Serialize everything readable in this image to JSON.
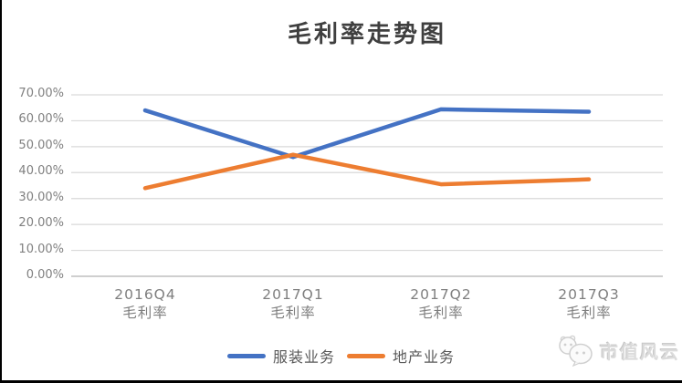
{
  "watermark": {
    "text": "市值风云",
    "icon": "panda-chat-logo-icon"
  },
  "chart_data": {
    "type": "line",
    "title": "毛利率走势图",
    "categories": [
      [
        "2016Q4",
        "毛利率"
      ],
      [
        "2017Q1",
        "毛利率"
      ],
      [
        "2017Q2",
        "毛利率"
      ],
      [
        "2017Q3",
        "毛利率"
      ]
    ],
    "series": [
      {
        "name": "服装业务",
        "color": "#4472C4",
        "values": [
          64.0,
          46.0,
          64.4,
          63.5
        ]
      },
      {
        "name": "地产业务",
        "color": "#ED7D31",
        "values": [
          34.0,
          46.9,
          35.5,
          37.4
        ]
      }
    ],
    "y_ticks": [
      "0.00%",
      "10.00%",
      "20.00%",
      "30.00%",
      "40.00%",
      "50.00%",
      "60.00%",
      "70.00%"
    ],
    "ylim": [
      0,
      70
    ],
    "grid": true,
    "legend_position": "bottom",
    "colors": {
      "gridline": "#D9D9D9",
      "axis_line": "#BFBFBF",
      "tick_label": "#808080",
      "title": "#3F3F3F",
      "legend_label": "#595959",
      "watermark": "#DBDBDB",
      "frame_border": "#000000"
    }
  }
}
